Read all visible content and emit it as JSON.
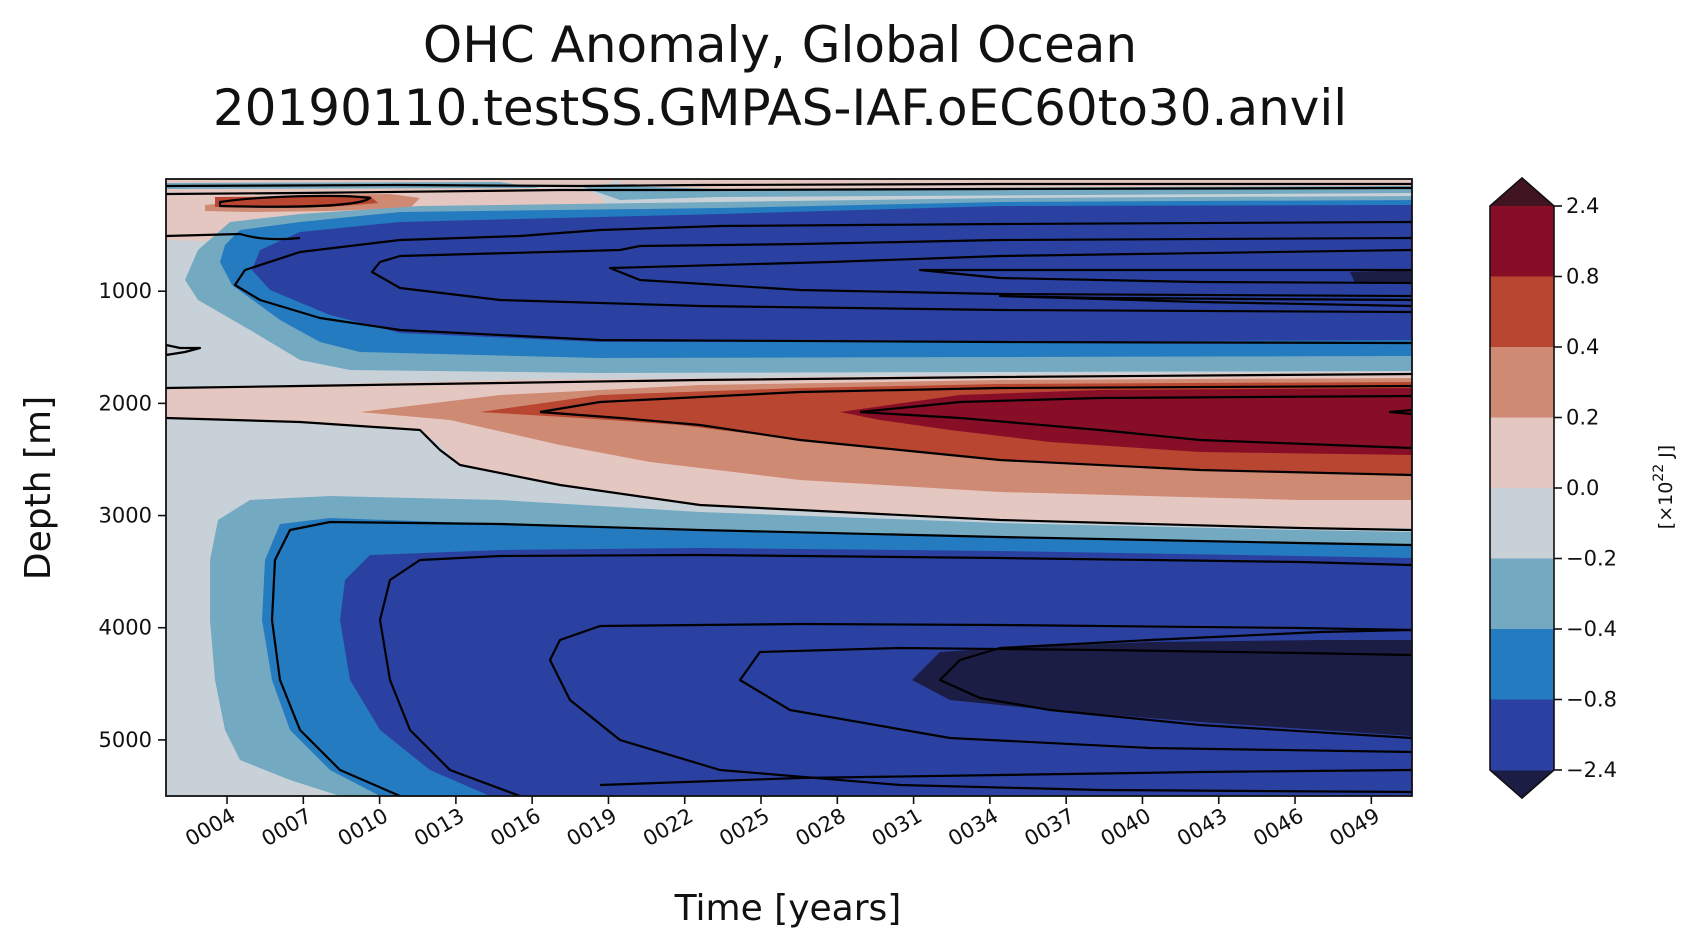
{
  "chart_data": {
    "type": "heatmap",
    "title": [
      "OHC Anomaly, Global Ocean",
      "20190110.testSS.GMPAS-IAF.oEC60to30.anvil"
    ],
    "xlabel": "Time [years]",
    "ylabel": "Depth [m]",
    "x_ticks": [
      "0004",
      "0007",
      "0010",
      "0013",
      "0016",
      "0019",
      "0022",
      "0025",
      "0028",
      "0031",
      "0034",
      "0037",
      "0040",
      "0043",
      "0046",
      "0049"
    ],
    "x_range": [
      1.6,
      50.6
    ],
    "y_ticks": [
      1000,
      2000,
      3000,
      4000,
      5000
    ],
    "y_range": [
      0,
      5500
    ],
    "y_inverted": true,
    "grid": false,
    "colorbar": {
      "label": "[×10^22 J]",
      "label_base": "[×10",
      "label_exp": "22",
      "label_unit": " J]",
      "tick_labels": [
        "2.4",
        "0.8",
        "0.4",
        "0.2",
        "0.0",
        "−0.2",
        "−0.4",
        "−0.8",
        "−2.4"
      ],
      "levels": [
        -2.4,
        -0.8,
        -0.4,
        -0.2,
        0.0,
        0.2,
        0.4,
        0.8,
        2.4
      ],
      "colors": [
        "#2a41a1",
        "#257bbf",
        "#74a9c2",
        "#c8d1d8",
        "#e5c7c1",
        "#cf8a73",
        "#b84630",
        "#880d27"
      ],
      "under_color": "#1b1d45",
      "over_color": "#401420",
      "extend": "both"
    },
    "regions": [
      {
        "level": "0.0 to 0.2",
        "description": "shallow warm band near 200 m, years 0001-0021"
      },
      {
        "level": "0.2 to 2.4",
        "description": "warming layer 1800-2900 m, strengthening toward 0049"
      },
      {
        "level": "-2.4 to -0.2",
        "description": "cooling layer 300-1600 m"
      },
      {
        "level": "below -2.4",
        "description": "deep cold core 4000-5000 m, years 0031-0049"
      },
      {
        "level": "-0.8 to -0.2",
        "description": "abyssal cooling 3000-5500 m"
      }
    ]
  }
}
